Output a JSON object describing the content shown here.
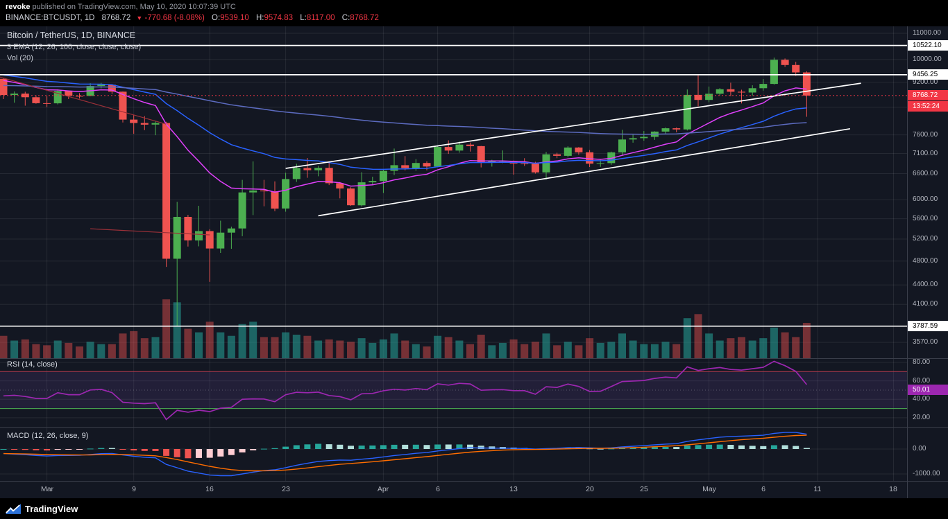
{
  "header": {
    "author": "revoke",
    "published": "published on TradingView.com, May 10, 2020 10:07:39 UTC",
    "symbol": "BINANCE:BTCUSDT, 1D",
    "last_price": "8768.72",
    "direction_arrow": "▼",
    "change": "-770.68 (-8.08%)",
    "ohlc": [
      {
        "label": "O:",
        "value": "9539.10"
      },
      {
        "label": "H:",
        "value": "9574.83"
      },
      {
        "label": "L:",
        "value": "8117.00"
      },
      {
        "label": "C:",
        "value": "8768.72"
      }
    ]
  },
  "legends": {
    "main": "Bitcoin / TetherUS, 1D, BINANCE",
    "ema": "3 EMA (12, 26, 100, close, close, close)",
    "volume": "Vol (20)",
    "rsi": "RSI (14, close)",
    "macd": "MACD (12, 26, close, 9)"
  },
  "footer": {
    "brand": "TradingView"
  },
  "chart_data": {
    "type": "candlestick",
    "symbol": "BINANCE:BTCUSDT",
    "interval": "1D",
    "title": "Bitcoin / TetherUS, 1D, BINANCE",
    "dates": [
      "02-26",
      "02-27",
      "02-28",
      "02-29",
      "03-01",
      "03-02",
      "03-03",
      "03-04",
      "03-05",
      "03-06",
      "03-07",
      "03-08",
      "03-09",
      "03-10",
      "03-11",
      "03-12",
      "03-13",
      "03-14",
      "03-15",
      "03-16",
      "03-17",
      "03-18",
      "03-19",
      "03-20",
      "03-21",
      "03-22",
      "03-23",
      "03-24",
      "03-25",
      "03-26",
      "03-27",
      "03-28",
      "03-29",
      "03-30",
      "03-31",
      "04-01",
      "04-02",
      "04-03",
      "04-04",
      "04-05",
      "04-06",
      "04-07",
      "04-08",
      "04-09",
      "04-10",
      "04-11",
      "04-12",
      "04-13",
      "04-14",
      "04-15",
      "04-16",
      "04-17",
      "04-18",
      "04-19",
      "04-20",
      "04-21",
      "04-22",
      "04-23",
      "04-24",
      "04-25",
      "04-26",
      "04-27",
      "04-28",
      "04-29",
      "04-30",
      "05-01",
      "05-02",
      "05-03",
      "05-04",
      "05-05",
      "05-06",
      "05-07",
      "05-08",
      "05-09",
      "05-10"
    ],
    "open": [
      9316,
      8786,
      8830,
      8715,
      8527,
      8523,
      8915,
      8757,
      8755,
      9078,
      9122,
      8893,
      8033,
      7935,
      7888,
      7934,
      4841,
      5637,
      5175,
      5354,
      5025,
      5324,
      5405,
      6162,
      6206,
      6187,
      5811,
      6469,
      6734,
      6681,
      6738,
      6372,
      6251,
      5881,
      6394,
      6424,
      6666,
      6804,
      6733,
      6859,
      6772,
      7271,
      7176,
      7334,
      7294,
      6865,
      6900,
      6910,
      6845,
      6842,
      6628,
      7079,
      7040,
      7257,
      7131,
      6842,
      6857,
      7130,
      7472,
      7508,
      7544,
      7690,
      7783,
      7750,
      8790,
      8629,
      8826,
      8972,
      8890,
      8866,
      9005,
      9148,
      9986,
      9800,
      9539
    ],
    "high": [
      9345,
      8898,
      8890,
      8775,
      8750,
      8970,
      8920,
      8845,
      9170,
      9180,
      9140,
      8900,
      8180,
      8135,
      7980,
      7968,
      5954,
      5680,
      5870,
      5390,
      5560,
      5440,
      6450,
      6900,
      6450,
      6415,
      6620,
      6840,
      6985,
      6790,
      6880,
      6400,
      6279,
      6631,
      6525,
      6699,
      7229,
      7033,
      6957,
      6903,
      7300,
      7450,
      7420,
      7389,
      7300,
      6940,
      7180,
      6920,
      6980,
      6890,
      7140,
      7120,
      7290,
      7270,
      7190,
      6940,
      7150,
      7738,
      7605,
      7705,
      7700,
      7805,
      7805,
      8965,
      9456,
      9060,
      9010,
      9187,
      8955,
      9100,
      9310,
      10067,
      10033,
      9914,
      9575
    ],
    "low": [
      8656,
      8542,
      8450,
      8510,
      8410,
      8490,
      8655,
      8670,
      8745,
      9000,
      8815,
      7950,
      7630,
      7730,
      7590,
      4700,
      3782,
      5060,
      5065,
      4450,
      4945,
      5020,
      5255,
      5675,
      5860,
      5755,
      5745,
      6403,
      6500,
      6535,
      6330,
      6030,
      5870,
      5856,
      6330,
      6150,
      6565,
      6675,
      6668,
      6680,
      6772,
      7090,
      7120,
      7152,
      6750,
      6770,
      6855,
      6575,
      6785,
      6600,
      6456,
      6980,
      7005,
      7068,
      6760,
      6765,
      6815,
      7062,
      7385,
      7440,
      7460,
      7622,
      7670,
      7722,
      8427,
      8555,
      8775,
      8745,
      8521,
      8765,
      8925,
      9125,
      9731,
      9418,
      8117
    ],
    "close": [
      8786,
      8830,
      8715,
      8527,
      8523,
      8915,
      8757,
      8755,
      9078,
      9122,
      8893,
      8033,
      7935,
      7888,
      7934,
      4841,
      5637,
      5175,
      5354,
      5025,
      5324,
      5405,
      6162,
      6206,
      6187,
      5811,
      6469,
      6734,
      6681,
      6738,
      6372,
      6251,
      5881,
      6394,
      6424,
      6666,
      6804,
      6733,
      6859,
      6772,
      7271,
      7176,
      7334,
      7294,
      6865,
      6900,
      6910,
      6845,
      6842,
      6628,
      7079,
      7040,
      7257,
      7131,
      6842,
      6857,
      7130,
      7472,
      7508,
      7544,
      7690,
      7783,
      7750,
      8790,
      8629,
      8826,
      8972,
      8890,
      8866,
      9005,
      9148,
      9986,
      9800,
      9539,
      8769
    ],
    "volume_rel": [
      0.38,
      0.3,
      0.32,
      0.24,
      0.22,
      0.3,
      0.26,
      0.2,
      0.28,
      0.24,
      0.24,
      0.42,
      0.46,
      0.34,
      0.36,
      1.0,
      0.95,
      0.5,
      0.44,
      0.62,
      0.44,
      0.38,
      0.58,
      0.62,
      0.36,
      0.36,
      0.44,
      0.4,
      0.38,
      0.3,
      0.32,
      0.3,
      0.28,
      0.34,
      0.26,
      0.32,
      0.42,
      0.3,
      0.24,
      0.2,
      0.38,
      0.36,
      0.3,
      0.24,
      0.4,
      0.22,
      0.26,
      0.32,
      0.24,
      0.28,
      0.42,
      0.22,
      0.28,
      0.22,
      0.34,
      0.26,
      0.28,
      0.42,
      0.3,
      0.24,
      0.24,
      0.28,
      0.24,
      0.68,
      0.75,
      0.42,
      0.3,
      0.34,
      0.36,
      0.3,
      0.34,
      0.52,
      0.44,
      0.36,
      0.6
    ],
    "price_axis": {
      "scale": "log",
      "ticks": [
        {
          "label": "11000.00",
          "price": 11000
        },
        {
          "label": "10000.00",
          "price": 10000
        },
        {
          "label": "9200.00",
          "price": 9200
        },
        {
          "label": "7600.00",
          "price": 7600
        },
        {
          "label": "7100.00",
          "price": 7100
        },
        {
          "label": "6600.00",
          "price": 6600
        },
        {
          "label": "6000.00",
          "price": 6000
        },
        {
          "label": "5600.00",
          "price": 5600
        },
        {
          "label": "5200.00",
          "price": 5200
        },
        {
          "label": "4800.00",
          "price": 4800
        },
        {
          "label": "4400.00",
          "price": 4400
        },
        {
          "label": "4100.00",
          "price": 4100
        },
        {
          "label": "3570.00",
          "price": 3570
        }
      ],
      "grid_prices": [
        11000,
        10000,
        9200,
        8400,
        7600,
        7100,
        6600,
        6000,
        5600,
        5200,
        4800,
        4400,
        4100,
        3570
      ]
    },
    "time_axis": {
      "ticks": [
        {
          "label": "Mar",
          "day": 4
        },
        {
          "label": "9",
          "day": 12
        },
        {
          "label": "16",
          "day": 19
        },
        {
          "label": "23",
          "day": 26
        },
        {
          "label": "Apr",
          "day": 35
        },
        {
          "label": "6",
          "day": 40
        },
        {
          "label": "13",
          "day": 47
        },
        {
          "label": "20",
          "day": 54
        },
        {
          "label": "25",
          "day": 59
        },
        {
          "label": "May",
          "day": 65
        },
        {
          "label": "6",
          "day": 70
        },
        {
          "label": "11",
          "day": 75
        },
        {
          "label": "18",
          "day": 82
        }
      ]
    },
    "overlays": {
      "horizontal_lines": [
        {
          "label": "10522.10",
          "price": 10522.1
        },
        {
          "label": "9456.25",
          "price": 9456.25
        },
        {
          "label": "3787.59",
          "price": 3787.59
        }
      ],
      "channel_lines": [
        {
          "from_day": 26,
          "from_price": 6726,
          "to_day": 79,
          "to_price": 9170
        },
        {
          "from_day": 29,
          "from_price": 5660,
          "to_day": 78,
          "to_price": 7770
        }
      ],
      "red_lines": [
        {
          "from_day": -1,
          "from_price": 9450,
          "to_day": 15,
          "to_price": 7900
        },
        {
          "from_day": 8,
          "from_price": 5400,
          "to_day": 19,
          "to_price": 5280
        }
      ],
      "last_price": {
        "label": "8768.72",
        "value": 8768.72,
        "countdown": "13:52:24"
      }
    },
    "indicators": {
      "emas": [
        {
          "period": 12,
          "color": "#e040fb",
          "seed": 9350
        },
        {
          "period": 26,
          "color": "#2962ff",
          "seed": 9500
        },
        {
          "period": 100,
          "color": "#5c6bc0",
          "seed": 9100
        }
      ],
      "rsi": {
        "period": 14,
        "last_value_label": "50.01",
        "upper_band": 70,
        "lower_band": 30,
        "mid": 50,
        "color": "#9c27b0",
        "upper_color": "#b73b4e",
        "lower_color": "#4caf50",
        "band_fill": "rgba(126,87,194,0.14)",
        "ticks": [
          {
            "label": "80.00",
            "value": 80
          },
          {
            "label": "60.00",
            "value": 60
          },
          {
            "label": "40.00",
            "value": 40
          },
          {
            "label": "20.00",
            "value": 20
          }
        ],
        "seed_avg_gain": 140,
        "seed_avg_loss": 180
      },
      "macd": {
        "fast": 12,
        "slow": 26,
        "signal": 9,
        "macd_color": "#2962ff",
        "signal_color": "#ff6d00",
        "ticks": [
          {
            "label": "0.00",
            "value": 0
          },
          {
            "label": "-1000.00",
            "value": -1000
          }
        ]
      }
    },
    "colors": {
      "background": "#131722",
      "up": "#4caf50",
      "down": "#ef5350",
      "vol_up": "rgba(38,166,154,0.55)",
      "vol_down": "rgba(239,83,80,0.45)",
      "hist_up": "#26a69a",
      "hist_up_weak": "#b2dfdb",
      "hist_down": "#ef5350",
      "hist_down_weak": "#ffcdd2",
      "grid": "rgba(255,255,255,0.08)",
      "axis_text": "#b2b5be",
      "white_line": "#ffffff",
      "red_line": "#9c3038",
      "badge_white_bg": "#ffffff",
      "badge_red_bg": "#f23645"
    }
  }
}
